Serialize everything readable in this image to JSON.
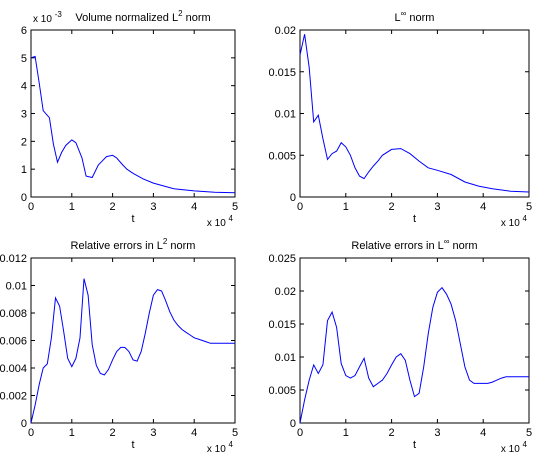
{
  "chart_data": [
    {
      "type": "line",
      "title": "Volume normalized L² norm",
      "title_base": "Volume normalized L",
      "title_sup": "2",
      "title_tail": " norm",
      "xlabel": "t",
      "x_multiplier": "x 10",
      "x_multiplier_exp": "4",
      "y_multiplier": "x 10",
      "y_multiplier_exp": "-3",
      "xlim": [
        0,
        5
      ],
      "ylim": [
        0,
        6
      ],
      "xticks": [
        "0",
        "1",
        "2",
        "3",
        "4",
        "5"
      ],
      "yticks": [
        "0",
        "1",
        "2",
        "3",
        "4",
        "5",
        "6"
      ],
      "xtick_values": [
        0,
        1,
        2,
        3,
        4,
        5
      ],
      "ytick_values": [
        0,
        1,
        2,
        3,
        4,
        5,
        6
      ],
      "line_color": "#0000ff",
      "x": [
        0,
        0.1,
        0.2,
        0.3,
        0.45,
        0.55,
        0.65,
        0.75,
        0.85,
        1.0,
        1.1,
        1.25,
        1.35,
        1.5,
        1.65,
        1.75,
        1.85,
        2.0,
        2.1,
        2.25,
        2.35,
        2.5,
        2.75,
        3.0,
        3.5,
        4.0,
        4.5,
        5.0
      ],
      "y": [
        5.0,
        5.05,
        4.1,
        3.1,
        2.85,
        1.9,
        1.25,
        1.6,
        1.85,
        2.05,
        1.95,
        1.4,
        0.75,
        0.7,
        1.15,
        1.3,
        1.45,
        1.5,
        1.4,
        1.15,
        1.0,
        0.85,
        0.65,
        0.5,
        0.3,
        0.22,
        0.17,
        0.15
      ]
    },
    {
      "type": "line",
      "title": "L∞ norm",
      "title_base": "L",
      "title_sup": "∞",
      "title_tail": " norm",
      "xlabel": "t",
      "x_multiplier": "x 10",
      "x_multiplier_exp": "4",
      "xlim": [
        0,
        5
      ],
      "ylim": [
        0,
        0.02
      ],
      "xticks": [
        "0",
        "1",
        "2",
        "3",
        "4",
        "5"
      ],
      "yticks": [
        "0",
        "0.005",
        "0.01",
        "0.015",
        "0.02"
      ],
      "xtick_values": [
        0,
        1,
        2,
        3,
        4,
        5
      ],
      "ytick_values": [
        0,
        0.005,
        0.01,
        0.015,
        0.02
      ],
      "line_color": "#0000ff",
      "x": [
        0,
        0.1,
        0.2,
        0.3,
        0.4,
        0.5,
        0.6,
        0.7,
        0.8,
        0.9,
        1.0,
        1.1,
        1.2,
        1.3,
        1.4,
        1.5,
        1.6,
        1.7,
        1.8,
        2.0,
        2.2,
        2.4,
        2.6,
        2.8,
        3.0,
        3.3,
        3.6,
        3.9,
        4.2,
        4.6,
        5.0
      ],
      "y": [
        0.017,
        0.0195,
        0.0155,
        0.009,
        0.0098,
        0.007,
        0.0045,
        0.0052,
        0.0055,
        0.0065,
        0.006,
        0.005,
        0.0035,
        0.0025,
        0.0022,
        0.003,
        0.0037,
        0.0043,
        0.005,
        0.0057,
        0.0058,
        0.0052,
        0.0043,
        0.0035,
        0.0032,
        0.0027,
        0.0018,
        0.0013,
        0.001,
        0.0007,
        0.0006
      ]
    },
    {
      "type": "line",
      "title": "Relative errors in L² norm",
      "title_base": "Relative errors in L",
      "title_sup": "2",
      "title_tail": " norm",
      "xlabel": "t",
      "x_multiplier": "x 10",
      "x_multiplier_exp": "4",
      "xlim": [
        0,
        5
      ],
      "ylim": [
        0,
        0.012
      ],
      "xticks": [
        "0",
        "1",
        "2",
        "3",
        "4",
        "5"
      ],
      "yticks": [
        "0",
        "0.002",
        "0.004",
        "0.006",
        "0.008",
        "0.01",
        "0.012"
      ],
      "xtick_values": [
        0,
        1,
        2,
        3,
        4,
        5
      ],
      "ytick_values": [
        0,
        0.002,
        0.004,
        0.006,
        0.008,
        0.01,
        0.012
      ],
      "line_color": "#0000ff",
      "x": [
        0,
        0.1,
        0.2,
        0.3,
        0.4,
        0.5,
        0.6,
        0.7,
        0.8,
        0.9,
        1.0,
        1.1,
        1.2,
        1.3,
        1.4,
        1.5,
        1.6,
        1.7,
        1.8,
        1.9,
        2.0,
        2.1,
        2.2,
        2.3,
        2.4,
        2.5,
        2.6,
        2.7,
        2.8,
        2.9,
        3.0,
        3.1,
        3.2,
        3.3,
        3.4,
        3.5,
        3.6,
        3.7,
        3.8,
        3.9,
        4.0,
        4.1,
        4.2,
        4.3,
        4.4,
        4.5,
        4.6,
        4.7,
        4.8,
        4.9,
        5.0
      ],
      "y": [
        0.0,
        0.0013,
        0.0028,
        0.004,
        0.0043,
        0.0062,
        0.0091,
        0.0085,
        0.0067,
        0.0047,
        0.0041,
        0.0047,
        0.0062,
        0.0105,
        0.0093,
        0.0057,
        0.0042,
        0.0036,
        0.0035,
        0.0039,
        0.0046,
        0.0052,
        0.0055,
        0.0055,
        0.0052,
        0.0046,
        0.0045,
        0.0052,
        0.0065,
        0.008,
        0.0093,
        0.0097,
        0.0096,
        0.0089,
        0.0081,
        0.0075,
        0.0071,
        0.0068,
        0.0066,
        0.0064,
        0.0062,
        0.0061,
        0.006,
        0.0059,
        0.0058,
        0.0058,
        0.0058,
        0.0058,
        0.0058,
        0.0058,
        0.0058
      ]
    },
    {
      "type": "line",
      "title": "Relative errors in L∞ norm",
      "title_base": "Relative errors in L",
      "title_sup": "∞",
      "title_tail": " norm",
      "xlabel": "t",
      "x_multiplier": "x 10",
      "x_multiplier_exp": "4",
      "xlim": [
        0,
        5
      ],
      "ylim": [
        0,
        0.025
      ],
      "xticks": [
        "0",
        "1",
        "2",
        "3",
        "4",
        "5"
      ],
      "yticks": [
        "0",
        "0.005",
        "0.01",
        "0.015",
        "0.02",
        "0.025"
      ],
      "xtick_values": [
        0,
        1,
        2,
        3,
        4,
        5
      ],
      "ytick_values": [
        0,
        0.005,
        0.01,
        0.015,
        0.02,
        0.025
      ],
      "line_color": "#0000ff",
      "x": [
        0,
        0.1,
        0.2,
        0.3,
        0.4,
        0.5,
        0.6,
        0.7,
        0.8,
        0.9,
        1.0,
        1.1,
        1.2,
        1.3,
        1.4,
        1.5,
        1.6,
        1.7,
        1.8,
        1.9,
        2.0,
        2.1,
        2.2,
        2.3,
        2.4,
        2.5,
        2.6,
        2.7,
        2.8,
        2.9,
        3.0,
        3.1,
        3.2,
        3.3,
        3.4,
        3.5,
        3.6,
        3.7,
        3.8,
        3.9,
        4.0,
        4.1,
        4.2,
        4.3,
        4.4,
        4.5,
        4.6,
        4.7,
        4.8,
        4.9,
        5.0
      ],
      "y": [
        0.0,
        0.0035,
        0.0065,
        0.0088,
        0.0075,
        0.0088,
        0.0155,
        0.0168,
        0.0145,
        0.009,
        0.0072,
        0.0068,
        0.0072,
        0.0085,
        0.0098,
        0.0068,
        0.0055,
        0.006,
        0.0065,
        0.0075,
        0.0088,
        0.01,
        0.0105,
        0.0095,
        0.0065,
        0.004,
        0.0045,
        0.0085,
        0.0135,
        0.0175,
        0.0198,
        0.0205,
        0.0195,
        0.018,
        0.0155,
        0.012,
        0.0085,
        0.0065,
        0.006,
        0.006,
        0.006,
        0.006,
        0.0062,
        0.0065,
        0.0068,
        0.007,
        0.007,
        0.007,
        0.007,
        0.007,
        0.007
      ]
    }
  ]
}
